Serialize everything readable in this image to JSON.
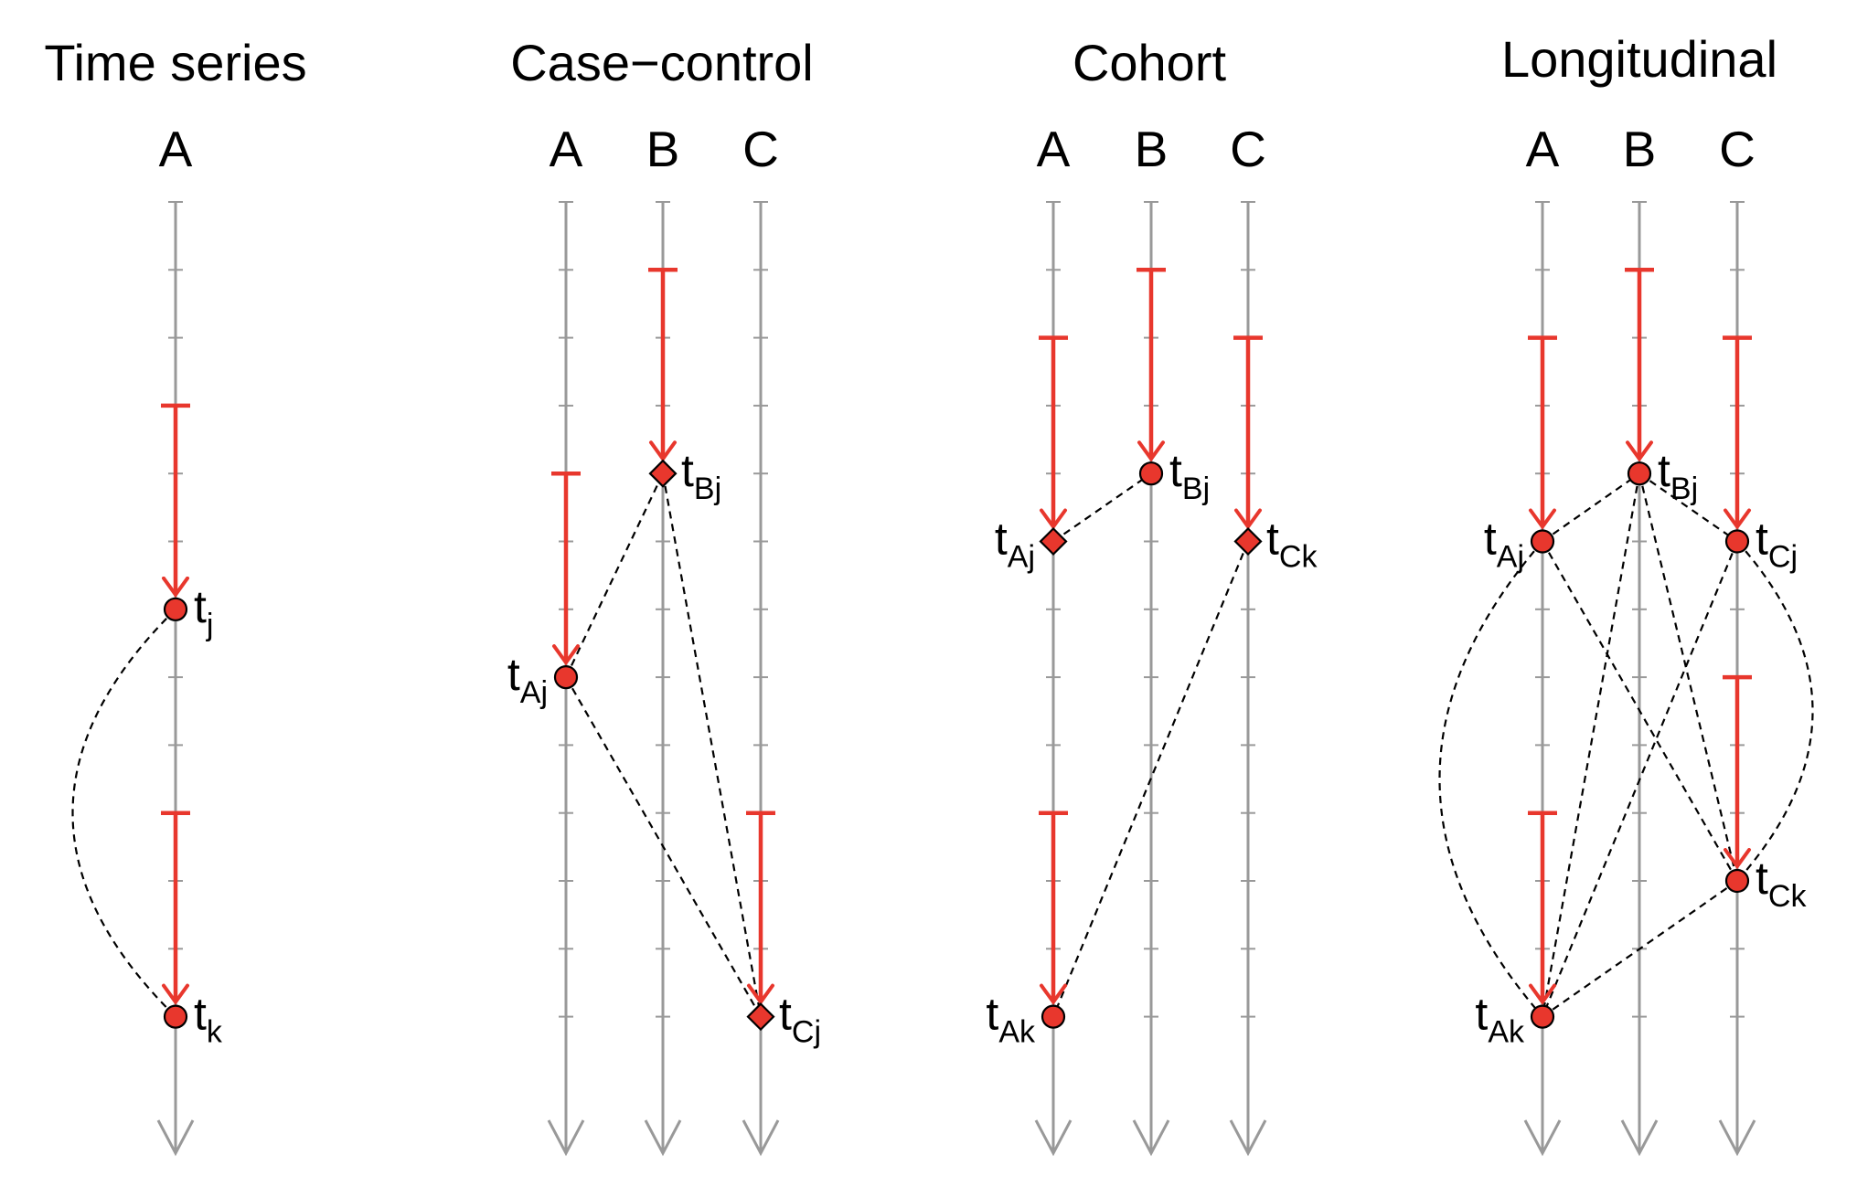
{
  "colors": {
    "axis": "#999999",
    "event": "#e8372d",
    "marker_fill": "#e8372d",
    "marker_stroke": "#000000",
    "link": "#000000"
  },
  "panels": [
    {
      "id": "time-series",
      "title": "Time series",
      "columns": [
        "A"
      ],
      "intervals": [
        {
          "col": "A",
          "start": 4,
          "end": 7
        },
        {
          "col": "A",
          "start": 10,
          "end": 13
        }
      ],
      "points": [
        {
          "id": "tj",
          "col": "A",
          "time": 7,
          "marker": "circle",
          "base": "t",
          "sub": "j",
          "side": "right"
        },
        {
          "id": "tk",
          "col": "A",
          "time": 13,
          "marker": "circle",
          "base": "t",
          "sub": "k",
          "side": "right"
        }
      ],
      "links": [
        {
          "from": "tj",
          "to": "tk",
          "curve": "left"
        }
      ]
    },
    {
      "id": "case-control",
      "title": "Case−control",
      "columns": [
        "A",
        "B",
        "C"
      ],
      "intervals": [
        {
          "col": "A",
          "start": 5,
          "end": 8
        },
        {
          "col": "B",
          "start": 2,
          "end": 5
        },
        {
          "col": "C",
          "start": 10,
          "end": 13
        }
      ],
      "points": [
        {
          "id": "tAj",
          "col": "A",
          "time": 8,
          "marker": "circle",
          "base": "t",
          "sub": "Aj",
          "side": "left"
        },
        {
          "id": "tBj",
          "col": "B",
          "time": 5,
          "marker": "diamond",
          "base": "t",
          "sub": "Bj",
          "side": "right"
        },
        {
          "id": "tCj",
          "col": "C",
          "time": 13,
          "marker": "diamond",
          "base": "t",
          "sub": "Cj",
          "side": "right"
        }
      ],
      "links": [
        {
          "from": "tAj",
          "to": "tBj"
        },
        {
          "from": "tAj",
          "to": "tCj"
        },
        {
          "from": "tBj",
          "to": "tCj"
        }
      ]
    },
    {
      "id": "cohort",
      "title": "Cohort",
      "columns": [
        "A",
        "B",
        "C"
      ],
      "intervals": [
        {
          "col": "A",
          "start": 3,
          "end": 6
        },
        {
          "col": "B",
          "start": 2,
          "end": 5
        },
        {
          "col": "C",
          "start": 3,
          "end": 6
        },
        {
          "col": "A",
          "start": 10,
          "end": 13
        }
      ],
      "points": [
        {
          "id": "tAj",
          "col": "A",
          "time": 6,
          "marker": "diamond",
          "base": "t",
          "sub": "Aj",
          "side": "left"
        },
        {
          "id": "tBj",
          "col": "B",
          "time": 5,
          "marker": "circle",
          "base": "t",
          "sub": "Bj",
          "side": "right"
        },
        {
          "id": "tCk",
          "col": "C",
          "time": 6,
          "marker": "diamond",
          "base": "t",
          "sub": "Ck",
          "side": "right"
        },
        {
          "id": "tAk",
          "col": "A",
          "time": 13,
          "marker": "circle",
          "base": "t",
          "sub": "Ak",
          "side": "left"
        }
      ],
      "links": [
        {
          "from": "tAj",
          "to": "tBj"
        },
        {
          "from": "tCk",
          "to": "tAk"
        }
      ]
    },
    {
      "id": "longitudinal",
      "title": "Longitudinal",
      "columns": [
        "A",
        "B",
        "C"
      ],
      "intervals": [
        {
          "col": "A",
          "start": 3,
          "end": 6
        },
        {
          "col": "B",
          "start": 2,
          "end": 5
        },
        {
          "col": "C",
          "start": 3,
          "end": 6
        },
        {
          "col": "C",
          "start": 8,
          "end": 11
        },
        {
          "col": "A",
          "start": 10,
          "end": 13
        }
      ],
      "points": [
        {
          "id": "tAj",
          "col": "A",
          "time": 6,
          "marker": "circle",
          "base": "t",
          "sub": "Aj",
          "side": "left"
        },
        {
          "id": "tBj",
          "col": "B",
          "time": 5,
          "marker": "circle",
          "base": "t",
          "sub": "Bj",
          "side": "right"
        },
        {
          "id": "tCj",
          "col": "C",
          "time": 6,
          "marker": "circle",
          "base": "t",
          "sub": "Cj",
          "side": "right"
        },
        {
          "id": "tCk",
          "col": "C",
          "time": 11,
          "marker": "circle",
          "base": "t",
          "sub": "Ck",
          "side": "right"
        },
        {
          "id": "tAk",
          "col": "A",
          "time": 13,
          "marker": "circle",
          "base": "t",
          "sub": "Ak",
          "side": "left"
        }
      ],
      "links": [
        {
          "from": "tAj",
          "to": "tBj"
        },
        {
          "from": "tBj",
          "to": "tCj"
        },
        {
          "from": "tAj",
          "to": "tCk"
        },
        {
          "from": "tBj",
          "to": "tAk"
        },
        {
          "from": "tBj",
          "to": "tCk"
        },
        {
          "from": "tCj",
          "to": "tAk"
        },
        {
          "from": "tCk",
          "to": "tAk"
        },
        {
          "from": "tAj",
          "to": "tAk",
          "curve": "left"
        },
        {
          "from": "tCj",
          "to": "tCk",
          "curve": "right"
        }
      ]
    }
  ]
}
